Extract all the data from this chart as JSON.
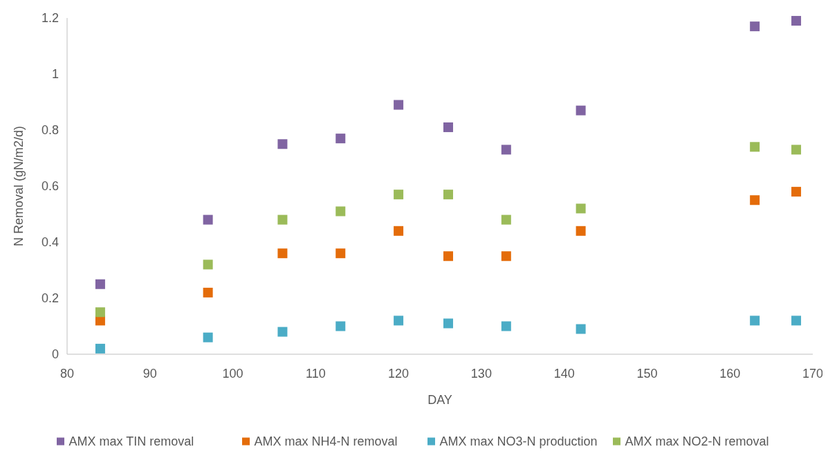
{
  "chart_data": {
    "type": "scatter",
    "xlabel": "DAY",
    "ylabel": "N Removal (gN/m2/d)",
    "x": [
      84,
      97,
      106,
      113,
      120,
      126,
      133,
      142,
      163,
      168
    ],
    "xlim": [
      80,
      170
    ],
    "xticks": [
      80,
      90,
      100,
      110,
      120,
      130,
      140,
      150,
      160,
      170
    ],
    "ylim": [
      0,
      1.2
    ],
    "yticks": [
      0,
      {
        "value": 0.2,
        "label": "0.2"
      },
      {
        "value": 0.4,
        "label": "0.4"
      },
      {
        "value": 0.6,
        "label": "0.6"
      },
      {
        "value": 0.8,
        "label": "0.8"
      },
      1,
      {
        "value": 1.2,
        "label": "1.2"
      }
    ],
    "grid": false,
    "legend": "bottom",
    "marker": "square",
    "series": [
      {
        "name": "AMX max TIN removal",
        "color": "#8064a2",
        "values": [
          0.25,
          0.48,
          0.75,
          0.77,
          0.89,
          0.81,
          0.73,
          0.87,
          1.17,
          1.19
        ]
      },
      {
        "name": "AMX max NH4-N removal",
        "color": "#e46c0a",
        "values": [
          0.12,
          0.22,
          0.36,
          0.36,
          0.44,
          0.35,
          0.35,
          0.44,
          0.55,
          0.58
        ]
      },
      {
        "name": "AMX max NO3-N production",
        "color": "#4bacc6",
        "values": [
          0.02,
          0.06,
          0.08,
          0.1,
          0.12,
          0.11,
          0.1,
          0.09,
          0.12,
          0.12
        ]
      },
      {
        "name": "AMX max NO2-N removal",
        "color": "#9bbb59",
        "values": [
          0.15,
          0.32,
          0.48,
          0.51,
          0.57,
          0.57,
          0.48,
          0.52,
          0.74,
          0.73
        ]
      }
    ]
  }
}
